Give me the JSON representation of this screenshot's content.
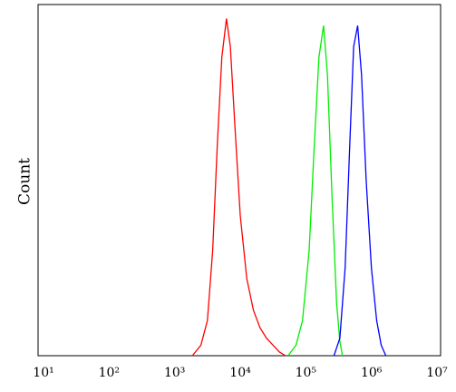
{
  "chart_data": {
    "type": "line",
    "ylabel": "Count",
    "xscale": "log",
    "grid": false,
    "xlim": [
      10,
      10000000
    ],
    "ylim": [
      0,
      100
    ],
    "xticks": [
      {
        "value": 10,
        "label": "10¹"
      },
      {
        "value": 100,
        "label": "10²"
      },
      {
        "value": 1000,
        "label": "10³"
      },
      {
        "value": 10000,
        "label": "10⁴"
      },
      {
        "value": 100000,
        "label": "10⁵"
      },
      {
        "value": 1000000,
        "label": "10⁶"
      },
      {
        "value": 10000000,
        "label": "10⁷"
      }
    ],
    "series": [
      {
        "color": "#ff0000",
        "x": [
          1862,
          2512,
          3162,
          3802,
          4467,
          5248,
          6166,
          7079,
          8318,
          10000,
          12589,
          15849,
          19953,
          25119,
          31623,
          39811,
          48978
        ],
        "values": [
          0,
          3,
          10,
          30,
          60,
          85,
          96,
          88,
          65,
          40,
          22,
          13,
          8,
          5,
          3,
          1,
          0
        ]
      },
      {
        "color": "#00ee00",
        "x": [
          53703,
          70795,
          89125,
          112202,
          134896,
          158489,
          186209,
          213796,
          251189,
          295121,
          331131,
          363078
        ],
        "values": [
          0,
          3,
          10,
          30,
          60,
          85,
          94,
          80,
          45,
          15,
          4,
          0
        ]
      },
      {
        "color": "#0000ff",
        "x": [
          269153,
          331131,
          398107,
          467735,
          537032,
          616595,
          707946,
          831764,
          1000000,
          1202264,
          1412538,
          1659587
        ],
        "values": [
          0,
          5,
          25,
          60,
          88,
          94,
          80,
          50,
          25,
          10,
          3,
          0
        ]
      }
    ]
  }
}
